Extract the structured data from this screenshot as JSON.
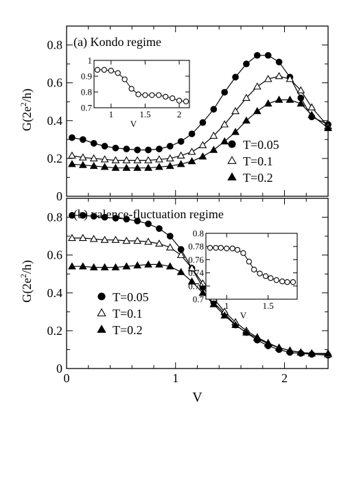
{
  "chart_data": [
    {
      "panel": "a",
      "type": "line",
      "title": "(a) Kondo regime",
      "xlabel": "",
      "ylabel": "G(2e²/h)",
      "ylabel_parts": {
        "prefix": "G(2e",
        "sup": "2",
        "suffix": "/h)"
      },
      "xlim": [
        0,
        2.4
      ],
      "ylim": [
        0,
        0.9
      ],
      "yticks": [
        "0",
        "0.2",
        "0.4",
        "0.6",
        "0.8"
      ],
      "legend_position": "right",
      "series": [
        {
          "name": "T=0.05",
          "marker": "circle-filled",
          "x": [
            0.05,
            0.15,
            0.25,
            0.35,
            0.45,
            0.55,
            0.65,
            0.75,
            0.85,
            0.95,
            1.05,
            1.15,
            1.25,
            1.35,
            1.45,
            1.55,
            1.65,
            1.75,
            1.85,
            1.95,
            2.05,
            2.15,
            2.25,
            2.4
          ],
          "y": [
            0.31,
            0.3,
            0.28,
            0.265,
            0.255,
            0.25,
            0.245,
            0.245,
            0.25,
            0.265,
            0.29,
            0.33,
            0.39,
            0.46,
            0.55,
            0.63,
            0.7,
            0.745,
            0.745,
            0.71,
            0.63,
            0.52,
            0.42,
            0.38
          ]
        },
        {
          "name": "T=0.1",
          "marker": "triangle-open",
          "x": [
            0.05,
            0.15,
            0.25,
            0.35,
            0.45,
            0.55,
            0.65,
            0.75,
            0.85,
            0.95,
            1.05,
            1.15,
            1.25,
            1.35,
            1.45,
            1.55,
            1.65,
            1.75,
            1.85,
            1.95,
            2.05,
            2.15,
            2.25,
            2.4
          ],
          "y": [
            0.215,
            0.205,
            0.2,
            0.195,
            0.19,
            0.19,
            0.19,
            0.19,
            0.195,
            0.2,
            0.215,
            0.235,
            0.27,
            0.32,
            0.38,
            0.45,
            0.52,
            0.58,
            0.62,
            0.635,
            0.62,
            0.56,
            0.47,
            0.37
          ]
        },
        {
          "name": "T=0.2",
          "marker": "triangle-filled",
          "x": [
            0.05,
            0.15,
            0.25,
            0.35,
            0.45,
            0.55,
            0.65,
            0.75,
            0.85,
            0.95,
            1.05,
            1.15,
            1.25,
            1.35,
            1.45,
            1.55,
            1.65,
            1.75,
            1.85,
            1.95,
            2.05,
            2.15,
            2.25,
            2.4
          ],
          "y": [
            0.17,
            0.165,
            0.16,
            0.155,
            0.15,
            0.15,
            0.15,
            0.15,
            0.155,
            0.16,
            0.17,
            0.185,
            0.21,
            0.245,
            0.29,
            0.34,
            0.4,
            0.45,
            0.49,
            0.51,
            0.51,
            0.49,
            0.43,
            0.36
          ]
        }
      ],
      "inset": {
        "xlabel": "V",
        "xlim": [
          0.75,
          2.15
        ],
        "ylim": [
          0.7,
          1.0
        ],
        "xticks": [
          "1",
          "1.5",
          "2"
        ],
        "xtick_values": [
          1,
          1.5,
          2
        ],
        "yticks": [
          "0.7",
          "0.8",
          "0.9",
          "1"
        ],
        "ytick_values": [
          0.7,
          0.8,
          0.9,
          1.0
        ],
        "x": [
          0.8,
          0.9,
          1.0,
          1.1,
          1.2,
          1.3,
          1.4,
          1.5,
          1.6,
          1.7,
          1.8,
          1.9,
          2.0,
          2.1
        ],
        "y": [
          0.94,
          0.94,
          0.935,
          0.92,
          0.88,
          0.82,
          0.785,
          0.78,
          0.78,
          0.78,
          0.77,
          0.76,
          0.745,
          0.74
        ]
      }
    },
    {
      "panel": "b",
      "type": "line",
      "title": "(b)  valence-fluctuation regime",
      "xlabel": "V",
      "ylabel": "G(2e²/h)",
      "ylabel_parts": {
        "prefix": "G(2e",
        "sup": "2",
        "suffix": "/h)"
      },
      "xlim": [
        0,
        2.4
      ],
      "ylim": [
        0,
        0.9
      ],
      "xticks": [
        "0",
        "1",
        "2"
      ],
      "yticks": [
        "0",
        "0.2",
        "0.4",
        "0.6",
        "0.8"
      ],
      "legend_position": "left",
      "series": [
        {
          "name": "T=0.05",
          "marker": "circle-filled",
          "x": [
            0.05,
            0.15,
            0.25,
            0.35,
            0.45,
            0.55,
            0.65,
            0.75,
            0.85,
            0.95,
            1.05,
            1.15,
            1.25,
            1.35,
            1.45,
            1.55,
            1.65,
            1.75,
            1.85,
            1.95,
            2.05,
            2.15,
            2.25,
            2.4
          ],
          "y": [
            0.81,
            0.81,
            0.805,
            0.8,
            0.795,
            0.79,
            0.78,
            0.765,
            0.74,
            0.7,
            0.63,
            0.53,
            0.43,
            0.35,
            0.29,
            0.23,
            0.19,
            0.15,
            0.12,
            0.1,
            0.085,
            0.08,
            0.075,
            0.07
          ]
        },
        {
          "name": "T=0.1",
          "marker": "triangle-open",
          "x": [
            0.05,
            0.15,
            0.25,
            0.35,
            0.45,
            0.55,
            0.65,
            0.75,
            0.85,
            0.95,
            1.05,
            1.15,
            1.25,
            1.35,
            1.45,
            1.55,
            1.65,
            1.75,
            1.85,
            1.95,
            2.05,
            2.15,
            2.25,
            2.4
          ],
          "y": [
            0.69,
            0.69,
            0.685,
            0.68,
            0.68,
            0.675,
            0.675,
            0.67,
            0.66,
            0.64,
            0.6,
            0.53,
            0.45,
            0.37,
            0.3,
            0.245,
            0.2,
            0.165,
            0.135,
            0.11,
            0.095,
            0.085,
            0.08,
            0.075
          ]
        },
        {
          "name": "T=0.2",
          "marker": "triangle-filled",
          "x": [
            0.05,
            0.15,
            0.25,
            0.35,
            0.45,
            0.55,
            0.65,
            0.75,
            0.85,
            0.95,
            1.05,
            1.15,
            1.25,
            1.35,
            1.45,
            1.55,
            1.65,
            1.75,
            1.85,
            1.95,
            2.05,
            2.15,
            2.25,
            2.4
          ],
          "y": [
            0.54,
            0.54,
            0.535,
            0.535,
            0.535,
            0.54,
            0.545,
            0.55,
            0.55,
            0.54,
            0.51,
            0.46,
            0.4,
            0.34,
            0.28,
            0.23,
            0.19,
            0.16,
            0.13,
            0.11,
            0.095,
            0.085,
            0.08,
            0.08
          ]
        }
      ],
      "inset": {
        "xlabel": "V",
        "xlim": [
          0.75,
          1.85
        ],
        "ylim": [
          0.7,
          0.8
        ],
        "xticks": [
          "1",
          "1.5"
        ],
        "xtick_values": [
          1,
          1.5
        ],
        "yticks": [
          "0.7",
          "0.72",
          "0.74",
          "0.76",
          "0.78",
          "0.8"
        ],
        "ytick_values": [
          0.7,
          0.72,
          0.74,
          0.76,
          0.78,
          0.8
        ],
        "x": [
          0.8,
          0.87,
          0.93,
          1.0,
          1.07,
          1.13,
          1.2,
          1.27,
          1.33,
          1.4,
          1.47,
          1.53,
          1.6,
          1.67,
          1.73,
          1.8
        ],
        "y": [
          0.778,
          0.778,
          0.778,
          0.777,
          0.777,
          0.775,
          0.77,
          0.757,
          0.745,
          0.739,
          0.735,
          0.732,
          0.729,
          0.727,
          0.726,
          0.726
        ]
      }
    }
  ]
}
